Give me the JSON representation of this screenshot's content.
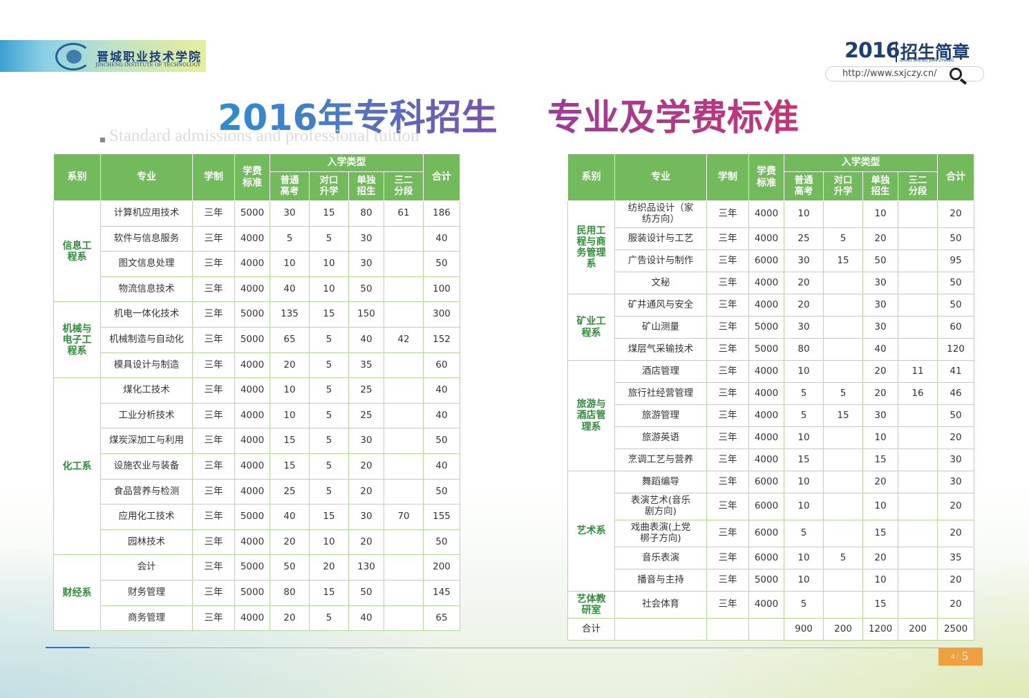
{
  "header": {
    "school_cn": "晋城职业技术学院",
    "school_en": "JINCHENG INSTITUTE OF TECHNOLOGY",
    "brand_year": "2016",
    "brand_title": "招生简章",
    "brand_pinyin": "ZHAO SHENG JIAN ZHANG",
    "url": "http://www.sxjczy.cn/"
  },
  "title": {
    "part1": "2016年专科招生",
    "part2": "专业及学费标准",
    "subtitle": "Standard admissions and professional tuition"
  },
  "columns": {
    "dept": "系别",
    "major": "专业",
    "duration": "学制",
    "fee": "学费标准",
    "type_group": "入学类型",
    "gk": "普通高考",
    "dk": "对口升学",
    "dd": "单独招生",
    "se": "三二分段",
    "total": "合计"
  },
  "left_table": [
    {
      "dept": "信息工程系",
      "rows": [
        {
          "major": "计算机应用技术",
          "duration": "三年",
          "fee": "5000",
          "gk": "30",
          "dk": "15",
          "dd": "80",
          "se": "61",
          "total": "186"
        },
        {
          "major": "软件与信息服务",
          "duration": "三年",
          "fee": "4000",
          "gk": "5",
          "dk": "5",
          "dd": "30",
          "se": "",
          "total": "40"
        },
        {
          "major": "图文信息处理",
          "duration": "三年",
          "fee": "4000",
          "gk": "10",
          "dk": "10",
          "dd": "30",
          "se": "",
          "total": "50"
        },
        {
          "major": "物流信息技术",
          "duration": "三年",
          "fee": "4000",
          "gk": "40",
          "dk": "10",
          "dd": "50",
          "se": "",
          "total": "100"
        }
      ]
    },
    {
      "dept": "机械与电子工程系",
      "rows": [
        {
          "major": "机电一体化技术",
          "duration": "三年",
          "fee": "5000",
          "gk": "135",
          "dk": "15",
          "dd": "150",
          "se": "",
          "total": "300"
        },
        {
          "major": "机械制造与自动化",
          "duration": "三年",
          "fee": "5000",
          "gk": "65",
          "dk": "5",
          "dd": "40",
          "se": "42",
          "total": "152"
        },
        {
          "major": "模具设计与制造",
          "duration": "三年",
          "fee": "4000",
          "gk": "20",
          "dk": "5",
          "dd": "35",
          "se": "",
          "total": "60"
        }
      ]
    },
    {
      "dept": "化工系",
      "rows": [
        {
          "major": "煤化工技术",
          "duration": "三年",
          "fee": "4000",
          "gk": "10",
          "dk": "5",
          "dd": "25",
          "se": "",
          "total": "40"
        },
        {
          "major": "工业分析技术",
          "duration": "三年",
          "fee": "4000",
          "gk": "10",
          "dk": "5",
          "dd": "25",
          "se": "",
          "total": "40"
        },
        {
          "major": "煤炭深加工与利用",
          "duration": "三年",
          "fee": "4000",
          "gk": "15",
          "dk": "5",
          "dd": "30",
          "se": "",
          "total": "50"
        },
        {
          "major": "设施农业与装备",
          "duration": "三年",
          "fee": "4000",
          "gk": "15",
          "dk": "5",
          "dd": "20",
          "se": "",
          "total": "40"
        },
        {
          "major": "食品营养与检测",
          "duration": "三年",
          "fee": "4000",
          "gk": "25",
          "dk": "5",
          "dd": "20",
          "se": "",
          "total": "50"
        },
        {
          "major": "应用化工技术",
          "duration": "三年",
          "fee": "5000",
          "gk": "40",
          "dk": "15",
          "dd": "30",
          "se": "70",
          "total": "155"
        },
        {
          "major": "园林技术",
          "duration": "三年",
          "fee": "4000",
          "gk": "20",
          "dk": "10",
          "dd": "20",
          "se": "",
          "total": "50"
        }
      ]
    },
    {
      "dept": "财经系",
      "rows": [
        {
          "major": "会计",
          "duration": "三年",
          "fee": "5000",
          "gk": "50",
          "dk": "20",
          "dd": "130",
          "se": "",
          "total": "200"
        },
        {
          "major": "财务管理",
          "duration": "三年",
          "fee": "5000",
          "gk": "80",
          "dk": "15",
          "dd": "50",
          "se": "",
          "total": "145"
        },
        {
          "major": "商务管理",
          "duration": "三年",
          "fee": "4000",
          "gk": "20",
          "dk": "5",
          "dd": "40",
          "se": "",
          "total": "65"
        }
      ]
    }
  ],
  "right_table": [
    {
      "dept": "民用工程与商务管理系",
      "rows": [
        {
          "major": "纺织品设计（家纺方向）",
          "duration": "三年",
          "fee": "4000",
          "gk": "10",
          "dk": "",
          "dd": "10",
          "se": "",
          "total": "20",
          "tall": true
        },
        {
          "major": "服装设计与工艺",
          "duration": "三年",
          "fee": "4000",
          "gk": "25",
          "dk": "5",
          "dd": "20",
          "se": "",
          "total": "50"
        },
        {
          "major": "广告设计与制作",
          "duration": "三年",
          "fee": "6000",
          "gk": "30",
          "dk": "15",
          "dd": "50",
          "se": "",
          "total": "95"
        },
        {
          "major": "文秘",
          "duration": "三年",
          "fee": "4000",
          "gk": "20",
          "dk": "",
          "dd": "30",
          "se": "",
          "total": "50"
        }
      ]
    },
    {
      "dept": "矿业工程系",
      "rows": [
        {
          "major": "矿井通风与安全",
          "duration": "三年",
          "fee": "4000",
          "gk": "20",
          "dk": "",
          "dd": "30",
          "se": "",
          "total": "50"
        },
        {
          "major": "矿山测量",
          "duration": "三年",
          "fee": "5000",
          "gk": "30",
          "dk": "",
          "dd": "30",
          "se": "",
          "total": "60"
        },
        {
          "major": "煤层气采输技术",
          "duration": "三年",
          "fee": "5000",
          "gk": "80",
          "dk": "",
          "dd": "40",
          "se": "",
          "total": "120"
        }
      ]
    },
    {
      "dept": "旅游与酒店管理系",
      "rows": [
        {
          "major": "酒店管理",
          "duration": "三年",
          "fee": "4000",
          "gk": "10",
          "dk": "",
          "dd": "20",
          "se": "11",
          "total": "41"
        },
        {
          "major": "旅行社经营管理",
          "duration": "三年",
          "fee": "4000",
          "gk": "5",
          "dk": "5",
          "dd": "20",
          "se": "16",
          "total": "46"
        },
        {
          "major": "旅游管理",
          "duration": "三年",
          "fee": "4000",
          "gk": "5",
          "dk": "15",
          "dd": "30",
          "se": "",
          "total": "50"
        },
        {
          "major": "旅游英语",
          "duration": "三年",
          "fee": "4000",
          "gk": "10",
          "dk": "",
          "dd": "10",
          "se": "",
          "total": "20"
        },
        {
          "major": "烹调工艺与营养",
          "duration": "三年",
          "fee": "4000",
          "gk": "15",
          "dk": "",
          "dd": "15",
          "se": "",
          "total": "30"
        }
      ]
    },
    {
      "dept": "艺术系",
      "rows": [
        {
          "major": "舞蹈编导",
          "duration": "三年",
          "fee": "6000",
          "gk": "10",
          "dk": "",
          "dd": "20",
          "se": "",
          "total": "30"
        },
        {
          "major": "表演艺术(音乐剧方向)",
          "duration": "三年",
          "fee": "6000",
          "gk": "10",
          "dk": "",
          "dd": "10",
          "se": "",
          "total": "20",
          "tall": true
        },
        {
          "major": "戏曲表演(上党梆子方向)",
          "duration": "三年",
          "fee": "6000",
          "gk": "5",
          "dk": "",
          "dd": "15",
          "se": "",
          "total": "20",
          "tall": true
        },
        {
          "major": "音乐表演",
          "duration": "三年",
          "fee": "6000",
          "gk": "10",
          "dk": "5",
          "dd": "20",
          "se": "",
          "total": "35"
        },
        {
          "major": "播音与主持",
          "duration": "三年",
          "fee": "5000",
          "gk": "10",
          "dk": "",
          "dd": "10",
          "se": "",
          "total": "20"
        }
      ]
    },
    {
      "dept": "艺体教研室",
      "rows": [
        {
          "major": "社会体育",
          "duration": "三年",
          "fee": "4000",
          "gk": "5",
          "dk": "",
          "dd": "15",
          "se": "",
          "total": "20",
          "tall": true
        }
      ]
    }
  ],
  "right_total": {
    "label": "合计",
    "gk": "900",
    "dk": "200",
    "dd": "1200",
    "se": "200",
    "total": "2500"
  },
  "page": {
    "current": "4",
    "sep": "/",
    "next": "5"
  }
}
